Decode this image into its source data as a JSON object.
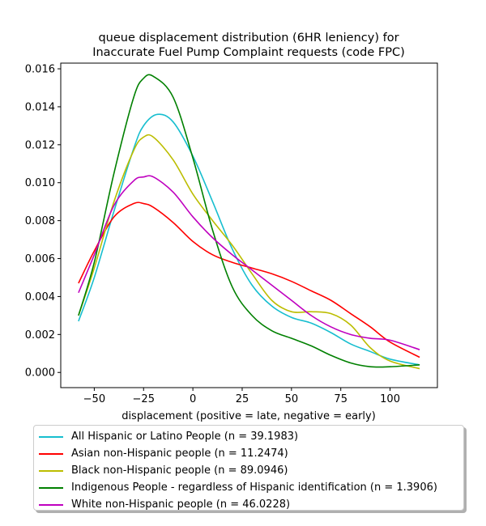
{
  "chart_data": {
    "type": "line",
    "title": "queue displacement distribution (6HR leniency) for\nInaccurate Fuel Pump Complaint  requests (code FPC)",
    "xlabel": "displacement (positive = late, negative = early)",
    "ylabel": "",
    "xlim": [
      -67,
      124
    ],
    "ylim": [
      -0.0008,
      0.0163
    ],
    "xticks": [
      -50,
      -25,
      0,
      25,
      50,
      75,
      100
    ],
    "xtick_labels": [
      "−50",
      "−25",
      "0",
      "25",
      "50",
      "75",
      "100"
    ],
    "yticks": [
      0.0,
      0.002,
      0.004,
      0.006,
      0.008,
      0.01,
      0.012,
      0.014,
      0.016
    ],
    "ytick_labels": [
      "0.000",
      "0.002",
      "0.004",
      "0.006",
      "0.008",
      "0.010",
      "0.012",
      "0.014",
      "0.016"
    ],
    "grid": false,
    "legend_position": "bottom",
    "series": [
      {
        "name": "All Hispanic or Latino People (n = 39.1983)",
        "color": "#17becf",
        "x": [
          -58,
          -50,
          -40,
          -30,
          -25,
          -18,
          -10,
          0,
          10,
          20,
          30,
          40,
          50,
          60,
          70,
          80,
          90,
          100,
          115
        ],
        "y": [
          0.0027,
          0.005,
          0.0085,
          0.0118,
          0.013,
          0.0136,
          0.0132,
          0.0114,
          0.009,
          0.0065,
          0.0046,
          0.0035,
          0.0029,
          0.0026,
          0.0021,
          0.0015,
          0.0011,
          0.0007,
          0.0004
        ]
      },
      {
        "name": "Asian non-Hispanic people (n = 11.2474)",
        "color": "#ff0000",
        "x": [
          -58,
          -50,
          -40,
          -30,
          -25,
          -20,
          -10,
          0,
          10,
          20,
          30,
          40,
          50,
          60,
          70,
          80,
          90,
          100,
          115
        ],
        "y": [
          0.0047,
          0.0064,
          0.0082,
          0.0089,
          0.0089,
          0.0087,
          0.0079,
          0.0069,
          0.0062,
          0.0058,
          0.0055,
          0.0052,
          0.0048,
          0.0043,
          0.0038,
          0.0031,
          0.0024,
          0.0016,
          0.0008
        ]
      },
      {
        "name": "Black non-Hispanic people (n = 89.0946)",
        "color": "#bcbd00",
        "x": [
          -58,
          -50,
          -40,
          -30,
          -25,
          -20,
          -10,
          0,
          10,
          20,
          30,
          40,
          50,
          60,
          70,
          80,
          90,
          100,
          115
        ],
        "y": [
          0.003,
          0.0055,
          0.009,
          0.0117,
          0.0124,
          0.0124,
          0.0112,
          0.0094,
          0.008,
          0.0067,
          0.0052,
          0.0038,
          0.0032,
          0.0032,
          0.0031,
          0.0025,
          0.0013,
          0.0006,
          0.0002
        ]
      },
      {
        "name": "Indigenous People - regardless of Hispanic identification (n = 1.3906)",
        "color": "#008000",
        "x": [
          -58,
          -50,
          -40,
          -30,
          -25,
          -20,
          -10,
          0,
          10,
          20,
          30,
          40,
          50,
          60,
          70,
          80,
          90,
          100,
          115
        ],
        "y": [
          0.003,
          0.0058,
          0.0105,
          0.0145,
          0.0155,
          0.0156,
          0.0145,
          0.0113,
          0.0075,
          0.0045,
          0.003,
          0.0022,
          0.0018,
          0.0014,
          0.0009,
          0.0005,
          0.0003,
          0.0003,
          0.0004
        ]
      },
      {
        "name": "White non-Hispanic people (n = 46.0228)",
        "color": "#bf00bf",
        "x": [
          -58,
          -50,
          -40,
          -30,
          -25,
          -20,
          -10,
          0,
          10,
          20,
          30,
          40,
          50,
          60,
          70,
          80,
          90,
          100,
          115
        ],
        "y": [
          0.0042,
          0.0062,
          0.0088,
          0.0101,
          0.0103,
          0.0103,
          0.0095,
          0.0082,
          0.0071,
          0.0062,
          0.0054,
          0.0046,
          0.0038,
          0.003,
          0.0024,
          0.002,
          0.0018,
          0.0017,
          0.0012
        ]
      }
    ]
  }
}
